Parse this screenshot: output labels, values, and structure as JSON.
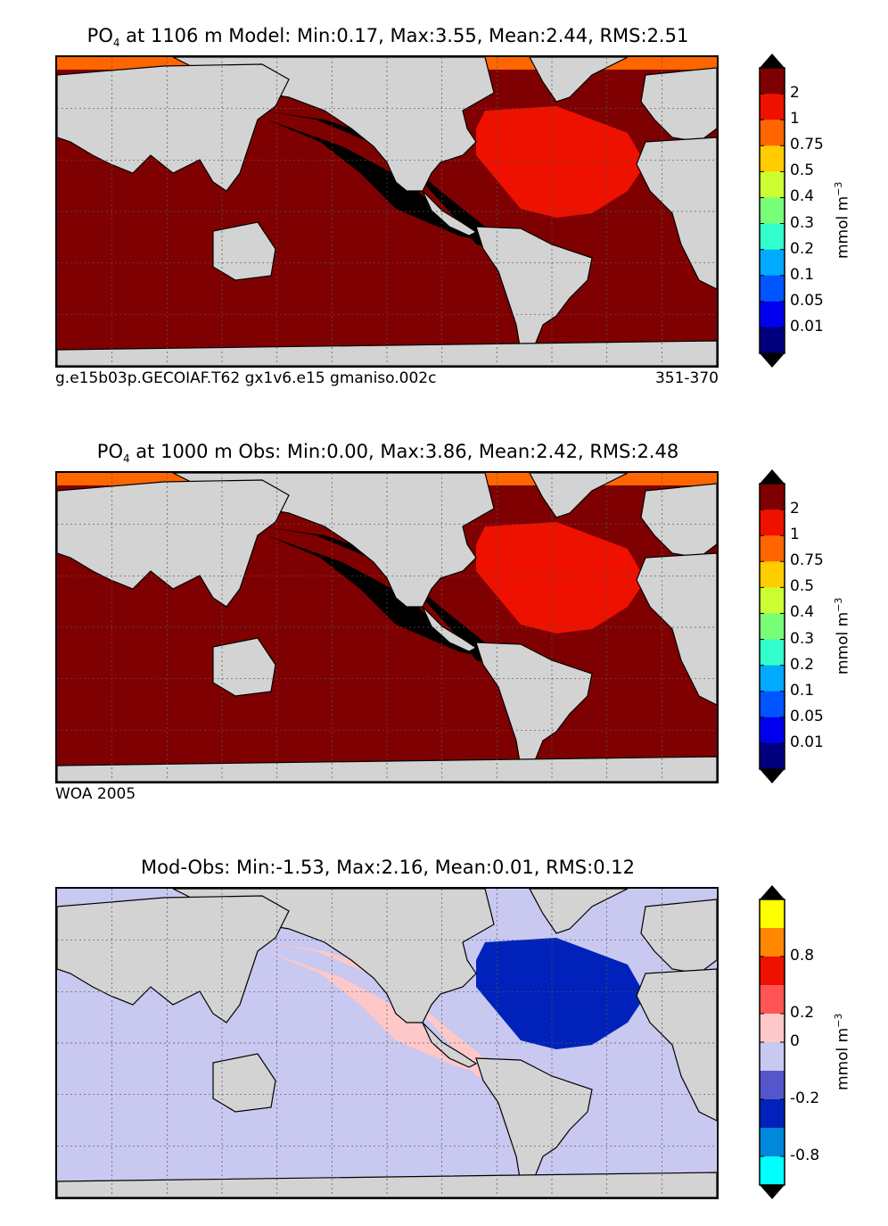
{
  "chart_data": [
    {
      "type": "heatmap",
      "title_prefix": "PO",
      "title_sub": "4",
      "title_rest": " at 1106 m Model: Min:0.17, Max:3.55, Mean:2.44, RMS:2.51",
      "caption_left": "g.e15b03p.GECOIAF.T62 gx1v6.e15 gmaniso.002c",
      "caption_right": "351-370",
      "colorbar_unit": "mmol m",
      "colorbar_unit_sup": "−3",
      "colorbar_ticks": [
        "2",
        "1",
        "0.75",
        "0.5",
        "0.4",
        "0.3",
        "0.2",
        "0.1",
        "0.05",
        "0.01"
      ],
      "colorbar_colors": [
        "#7f0000",
        "#ee1100",
        "#ff6600",
        "#ffcc00",
        "#ccff33",
        "#77ff77",
        "#33ffcc",
        "#00aaff",
        "#0055ff",
        "#0000ee",
        "#00007f"
      ],
      "dominant": {
        "pacific": "#000000",
        "atlantic_north": "#ee1100",
        "arctic": "#ff6600",
        "elsewhere": "#7f0000"
      }
    },
    {
      "type": "heatmap",
      "title_prefix": "PO",
      "title_sub": "4",
      "title_rest": " at 1000 m Obs: Min:0.00, Max:3.86, Mean:2.42, RMS:2.48",
      "caption_left": "WOA 2005",
      "caption_right": "",
      "colorbar_unit": "mmol m",
      "colorbar_unit_sup": "−3",
      "colorbar_ticks": [
        "2",
        "1",
        "0.75",
        "0.5",
        "0.4",
        "0.3",
        "0.2",
        "0.1",
        "0.05",
        "0.01"
      ],
      "colorbar_colors": [
        "#7f0000",
        "#ee1100",
        "#ff6600",
        "#ffcc00",
        "#ccff33",
        "#77ff77",
        "#33ffcc",
        "#00aaff",
        "#0055ff",
        "#0000ee",
        "#00007f"
      ],
      "dominant": {
        "pacific": "#000000",
        "atlantic_north": "#ee1100",
        "arctic": "#ff6600",
        "elsewhere": "#7f0000"
      }
    },
    {
      "type": "heatmap",
      "title_prefix": "",
      "title_sub": "",
      "title_rest": "Mod-Obs: Min:-1.53, Max:2.16, Mean:0.01, RMS:0.12",
      "caption_left": "",
      "caption_right": "",
      "colorbar_unit": "mmol m",
      "colorbar_unit_sup": "−3",
      "colorbar_ticks": [
        "0.8",
        "0.2",
        "0",
        "-0.2",
        "-0.8"
      ],
      "colorbar_colors": [
        "#ffff00",
        "#ff8800",
        "#ee1100",
        "#ff5555",
        "#ffc8c8",
        "#c8c8f0",
        "#5555cc",
        "#0022bb",
        "#0088dd",
        "#00ffff"
      ],
      "dominant": {
        "atlantic_north": "#0022bb",
        "pacific": "#ffc8c8",
        "elsewhere": "#c8c8f0"
      }
    }
  ]
}
